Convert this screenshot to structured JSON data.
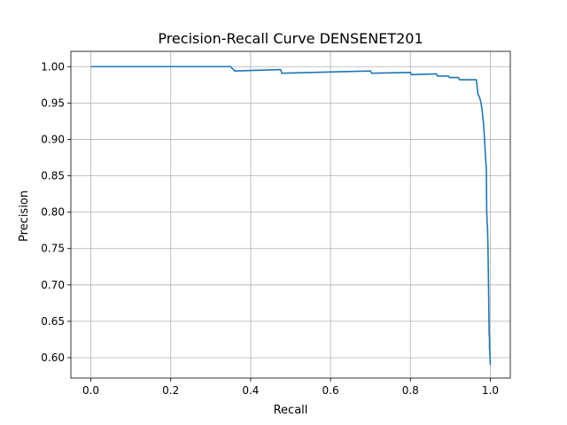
{
  "chart_data": {
    "type": "line",
    "title": "Precision-Recall Curve DENSENET201",
    "xlabel": "Recall",
    "ylabel": "Precision",
    "xlim": [
      -0.05,
      1.05
    ],
    "ylim": [
      0.572,
      1.021
    ],
    "grid": true,
    "legend": "none",
    "x_ticks": [
      0.0,
      0.2,
      0.4,
      0.6,
      0.8,
      1.0
    ],
    "x_tick_labels": [
      "0.0",
      "0.2",
      "0.4",
      "0.6",
      "0.8",
      "1.0"
    ],
    "y_ticks": [
      0.6,
      0.65,
      0.7,
      0.75,
      0.8,
      0.85,
      0.9,
      0.95,
      1.0
    ],
    "y_tick_labels": [
      "0.60",
      "0.65",
      "0.70",
      "0.75",
      "0.80",
      "0.85",
      "0.90",
      "0.95",
      "1.00"
    ],
    "line_color": "#1f77b4",
    "series": [
      {
        "x": [
          0.0,
          0.35,
          0.353,
          0.357,
          0.36,
          0.475,
          0.478,
          0.7,
          0.703,
          0.8,
          0.803,
          0.865,
          0.868,
          0.895,
          0.898,
          0.92,
          0.923,
          0.965,
          0.967,
          0.969,
          0.973,
          0.976,
          0.979,
          0.981,
          0.983,
          0.985,
          0.987,
          0.988,
          0.99,
          0.991,
          0.992,
          0.993,
          0.994,
          0.995,
          0.996,
          0.997,
          0.998,
          0.998,
          0.999,
          1.0
        ],
        "y": [
          1.0,
          1.0,
          0.998,
          0.996,
          0.994,
          0.996,
          0.991,
          0.994,
          0.991,
          0.992,
          0.989,
          0.99,
          0.987,
          0.987,
          0.985,
          0.985,
          0.982,
          0.982,
          0.972,
          0.962,
          0.958,
          0.952,
          0.942,
          0.932,
          0.922,
          0.905,
          0.885,
          0.875,
          0.86,
          0.8,
          0.785,
          0.778,
          0.755,
          0.72,
          0.68,
          0.635,
          0.625,
          0.613,
          0.605,
          0.59
        ]
      }
    ]
  }
}
